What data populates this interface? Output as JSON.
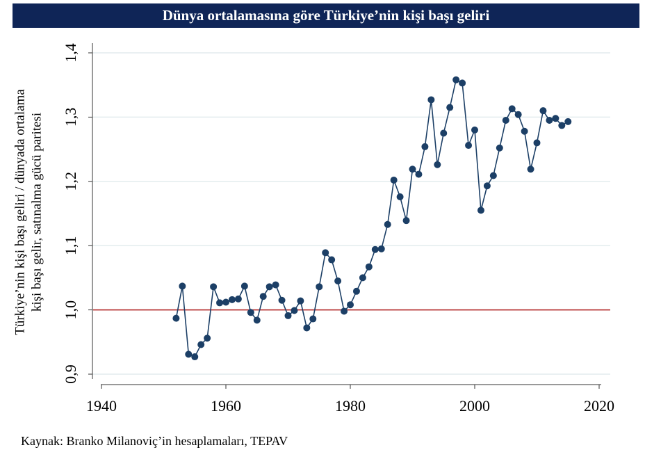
{
  "chart_data": {
    "type": "line",
    "title": "Dünya ortalamasına göre Türkiye’nin kişi başı geliri",
    "y_label": [
      "Türkiye’nin kişi başı geliri / dünyada ortalama",
      "kişi başı gelir, satınalma gücü paritesi"
    ],
    "source": "Kaynak: Branko Milanoviç’in hesaplamaları, TEPAV",
    "x": [
      1952,
      1953,
      1954,
      1955,
      1956,
      1957,
      1958,
      1959,
      1960,
      1961,
      1962,
      1963,
      1964,
      1965,
      1966,
      1967,
      1968,
      1969,
      1970,
      1971,
      1972,
      1973,
      1974,
      1975,
      1976,
      1977,
      1978,
      1979,
      1980,
      1981,
      1982,
      1983,
      1984,
      1985,
      1986,
      1987,
      1988,
      1989,
      1990,
      1991,
      1992,
      1993,
      1994,
      1995,
      1996,
      1997,
      1998,
      1999,
      2000,
      2001,
      2002,
      2003,
      2004,
      2005,
      2006,
      2007,
      2008,
      2009,
      2010,
      2011,
      2012,
      2013,
      2014,
      2015
    ],
    "values": [
      0.987,
      1.037,
      0.931,
      0.927,
      0.946,
      0.956,
      1.036,
      1.011,
      1.012,
      1.016,
      1.017,
      1.037,
      0.996,
      0.984,
      1.021,
      1.036,
      1.039,
      1.015,
      0.991,
      0.999,
      1.014,
      0.972,
      0.986,
      1.036,
      1.089,
      1.078,
      1.045,
      0.998,
      1.008,
      1.029,
      1.05,
      1.067,
      1.094,
      1.095,
      1.133,
      1.202,
      1.176,
      1.139,
      1.219,
      1.211,
      1.254,
      1.327,
      1.226,
      1.275,
      1.315,
      1.358,
      1.353,
      1.256,
      1.28,
      1.155,
      1.193,
      1.209,
      1.252,
      1.295,
      1.313,
      1.304,
      1.278,
      1.219,
      1.26,
      1.31,
      1.295,
      1.298,
      1.287,
      1.293
    ],
    "color": "#1c3f66",
    "reference_line": 1.0,
    "reference_color": "#b01c1c",
    "xlim": [
      1940,
      2020
    ],
    "xticks": [
      1940,
      1960,
      1980,
      2000,
      2020
    ],
    "ylim": [
      0.9,
      1.4
    ],
    "yticks": [
      {
        "value": 0.9,
        "label": "0,9"
      },
      {
        "value": 1.0,
        "label": "1,0"
      },
      {
        "value": 1.1,
        "label": "1,1"
      },
      {
        "value": 1.2,
        "label": "1,2"
      },
      {
        "value": 1.3,
        "label": "1,3"
      },
      {
        "value": 1.4,
        "label": "1,4"
      }
    ],
    "grid": true
  }
}
